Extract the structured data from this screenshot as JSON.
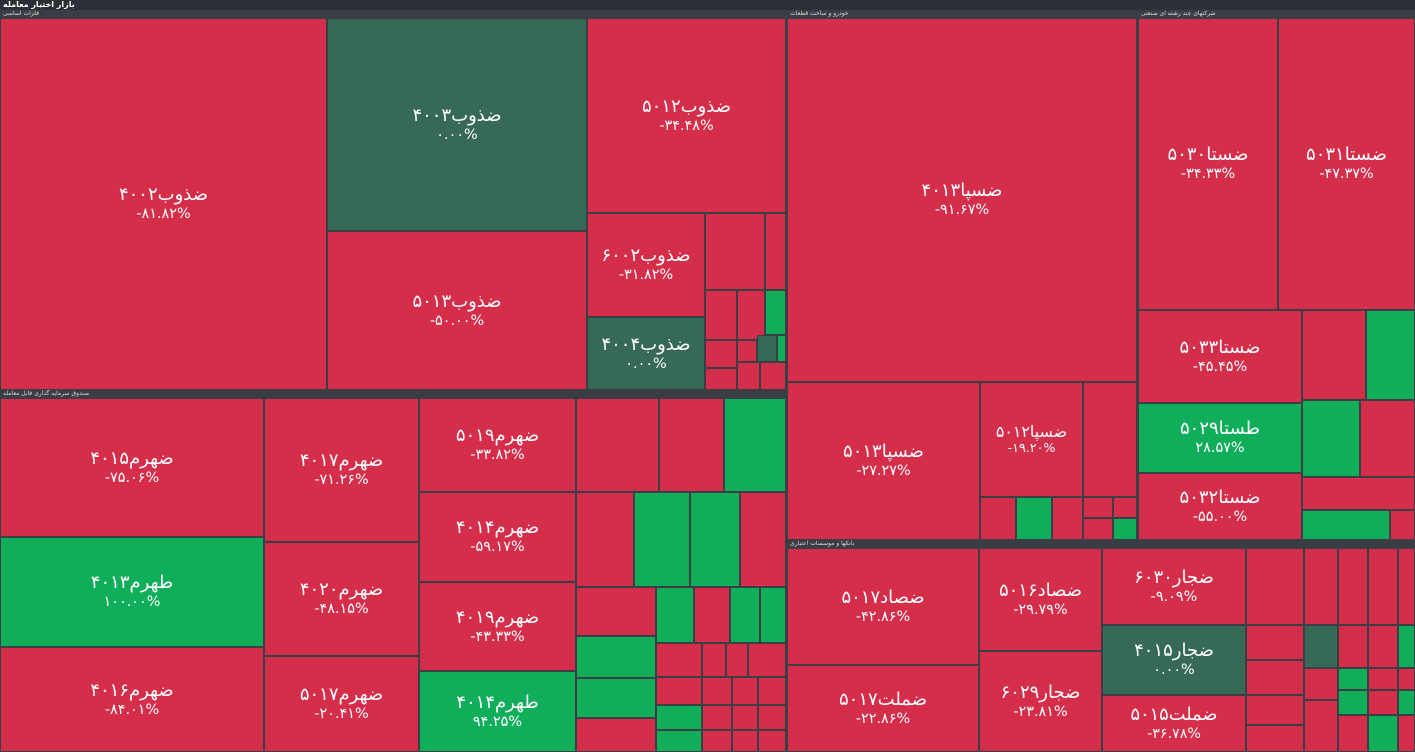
{
  "header": {
    "title": "بازار اختیار معامله"
  },
  "sectors": [
    {
      "name": "فلزات اساسی",
      "tiles": [
        {
          "name": "ضذوب۴۰۰۲",
          "change": "-۸۱.۸۲%",
          "color": "#d42e4b"
        },
        {
          "name": "ضذوب۴۰۰۳",
          "change": "۰.۰۰%",
          "color": "#366a56"
        },
        {
          "name": "ضذوب۵۰۱۳",
          "change": "-۵۰.۰۰%",
          "color": "#d42e4b"
        },
        {
          "name": "ضذوب۵۰۱۲",
          "change": "-۳۴.۴۸%",
          "color": "#d42e4b"
        },
        {
          "name": "ضذوب۶۰۰۲",
          "change": "-۳۱.۸۲%",
          "color": "#d42e4b"
        },
        {
          "name": "ضذوب۴۰۰۴",
          "change": "۰.۰۰%",
          "color": "#366a56"
        }
      ]
    },
    {
      "name": "خودرو و ساخت قطعات",
      "tiles": [
        {
          "name": "ضسپا۴۰۱۳",
          "change": "-۹۱.۶۷%",
          "color": "#d42e4b"
        },
        {
          "name": "ضسپا۵۰۱۳",
          "change": "-۲۷.۲۷%",
          "color": "#d42e4b"
        },
        {
          "name": "ضسپا۵۰۱۲",
          "change": "-۱۹.۲۰%",
          "color": "#d42e4b"
        }
      ]
    },
    {
      "name": "شرکتهای چند رشته ای صنعتی",
      "tiles": [
        {
          "name": "ضستا۵۰۳۰",
          "change": "-۳۴.۳۳%",
          "color": "#d42e4b"
        },
        {
          "name": "ضستا۵۰۳۱",
          "change": "-۴۷.۳۷%",
          "color": "#d42e4b"
        },
        {
          "name": "ضستا۵۰۳۳",
          "change": "-۴۵.۴۵%",
          "color": "#d42e4b"
        },
        {
          "name": "طستا۵۰۲۹",
          "change": "۲۸.۵۷%",
          "color": "#10ae5b"
        },
        {
          "name": "ضستا۵۰۳۲",
          "change": "-۵۵.۰۰%",
          "color": "#d42e4b"
        }
      ]
    },
    {
      "name": "صندوق سرمایه گذاری قابل معامله",
      "tiles": [
        {
          "name": "ضهرم۴۰۱۵",
          "change": "-۷۵.۰۶%",
          "color": "#d42e4b"
        },
        {
          "name": "طهرم۴۰۱۳",
          "change": "۱۰۰.۰۰%",
          "color": "#10ae5b"
        },
        {
          "name": "ضهرم۴۰۱۶",
          "change": "-۸۴.۰۱%",
          "color": "#d42e4b"
        },
        {
          "name": "ضهرم۴۰۱۷",
          "change": "-۷۱.۲۶%",
          "color": "#d42e4b"
        },
        {
          "name": "ضهرم۴۰۲۰",
          "change": "-۴۸.۱۵%",
          "color": "#d42e4b"
        },
        {
          "name": "ضهرم۵۰۱۷",
          "change": "-۲۰.۴۱%",
          "color": "#d42e4b"
        },
        {
          "name": "ضهرم۵۰۱۹",
          "change": "-۳۳.۸۲%",
          "color": "#d42e4b"
        },
        {
          "name": "ضهرم۴۰۱۴",
          "change": "-۵۹.۱۷%",
          "color": "#d42e4b"
        },
        {
          "name": "ضهرم۴۰۱۹",
          "change": "-۴۳.۳۳%",
          "color": "#d42e4b"
        },
        {
          "name": "طهرم۴۰۱۴",
          "change": "۹۴.۲۵%",
          "color": "#10ae5b"
        }
      ]
    },
    {
      "name": "بانکها و موسسات اعتباری",
      "tiles": [
        {
          "name": "ضصاد۵۰۱۷",
          "change": "-۴۲.۸۶%",
          "color": "#d42e4b"
        },
        {
          "name": "ضملت۵۰۱۷",
          "change": "-۲۲.۸۶%",
          "color": "#d42e4b"
        },
        {
          "name": "ضصاد۵۰۱۶",
          "change": "-۲۹.۷۹%",
          "color": "#d42e4b"
        },
        {
          "name": "ضجار۶۰۲۹",
          "change": "-۲۳.۸۱%",
          "color": "#d42e4b"
        },
        {
          "name": "ضجار۶۰۳۰",
          "change": "-۹.۰۹%",
          "color": "#d42e4b"
        },
        {
          "name": "ضجار۴۰۱۵",
          "change": "۰.۰۰%",
          "color": "#366a56"
        },
        {
          "name": "ضملت۵۰۱۵",
          "change": "-۳۶.۷۸%",
          "color": "#d42e4b"
        }
      ]
    }
  ]
}
